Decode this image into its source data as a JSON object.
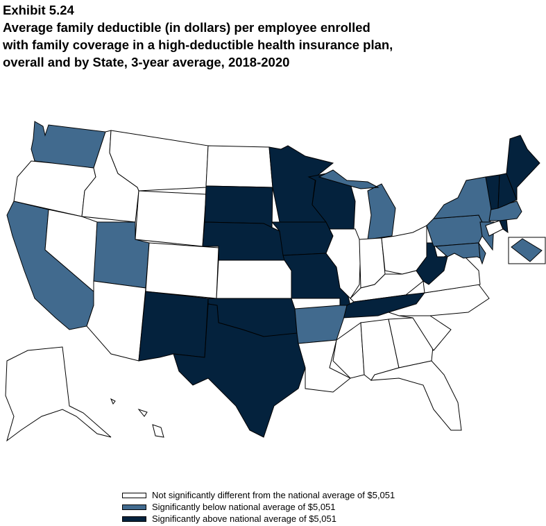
{
  "title": {
    "exhibit": "Exhibit 5.24",
    "lines": [
      "Average family deductible (in dollars) per employee enrolled",
      "with family coverage in a high-deductible health insurance plan,",
      "overall and by State, 3-year average, 2018-2020"
    ]
  },
  "colors": {
    "none": "#ffffff",
    "below": "#416a8e",
    "above": "#04223d"
  },
  "legend": [
    {
      "key": "none",
      "label": "Not significantly different from the national average of $5,051"
    },
    {
      "key": "below",
      "label": "Significantly below national average of $5,051"
    },
    {
      "key": "above",
      "label": "Significantly above national average of $5,051"
    }
  ],
  "states": {
    "WA": "below",
    "OR": "none",
    "CA": "below",
    "NV": "none",
    "ID": "none",
    "MT": "none",
    "WY": "none",
    "UT": "below",
    "AZ": "none",
    "CO": "none",
    "NM": "above",
    "ND": "none",
    "SD": "above",
    "NE": "above",
    "KS": "none",
    "OK": "above",
    "TX": "above",
    "MN": "above",
    "IA": "above",
    "MO": "above",
    "AR": "below",
    "LA": "none",
    "WI": "above",
    "IL": "none",
    "MI": "below",
    "IN": "none",
    "OH": "none",
    "KY": "none",
    "TN": "above",
    "MS": "none",
    "AL": "none",
    "GA": "none",
    "FL": "none",
    "SC": "none",
    "NC": "none",
    "VA": "none",
    "WV": "above",
    "PA": "below",
    "NY": "below",
    "NJ": "below",
    "DE": "below",
    "MD": "below",
    "DC": "below",
    "CT": "none",
    "RI": "above",
    "MA": "below",
    "VT": "above",
    "NH": "above",
    "ME": "above",
    "AK": "none",
    "HI": "none"
  }
}
